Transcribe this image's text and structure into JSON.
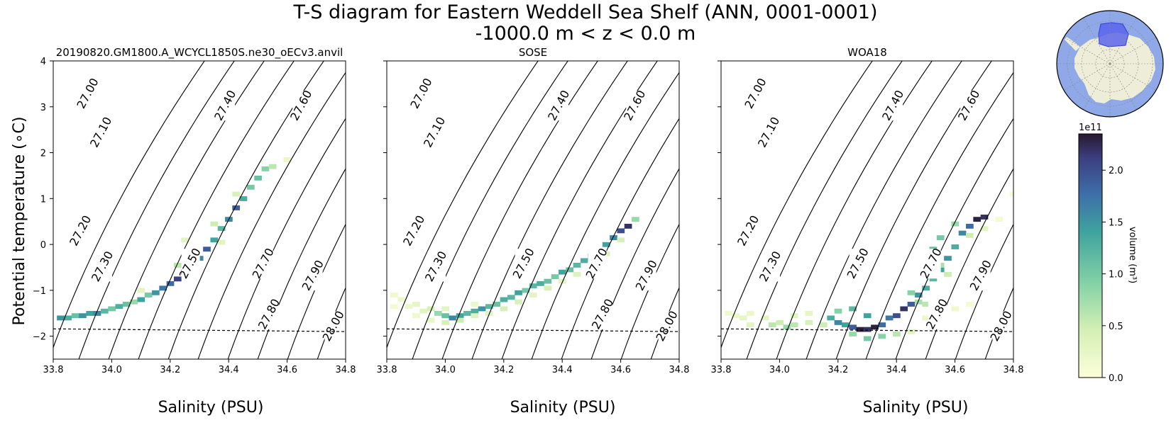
{
  "figure": {
    "title_line1": "T-S diagram for Eastern Weddell Sea Shelf (ANN, 0001-0001)",
    "title_line2": "-1000.0 m < z < 0.0 m",
    "ylabel": "Potential temperature (∘C)",
    "xlabel": "Salinity (PSU)"
  },
  "colorbar": {
    "label": "volume (m³)",
    "exponent": "1e11",
    "ticks": [
      0.0,
      0.5,
      1.0,
      1.5,
      2.0
    ],
    "tick_labels": [
      "0.0",
      "0.5",
      "1.0",
      "1.5",
      "2.0"
    ],
    "vmin": 0.0,
    "vmax": 2.35,
    "colormap": "deep"
  },
  "inset_map": {
    "ocean_color": "#8fa9e8",
    "land_color": "#eeedd8",
    "region_color": "#5a64ef"
  },
  "chart_data": [
    {
      "type": "heatmap",
      "title": "20190820.GM1800.A_WCYCL1850S.ne30_oECv3.anvil",
      "xlabel": "Salinity (PSU)",
      "ylabel": "Potential temperature (∘C)",
      "xlim": [
        33.8,
        34.8
      ],
      "ylim": [
        -2.5,
        4.0
      ],
      "x_ticks": [
        "33.8",
        "34.0",
        "34.2",
        "34.4",
        "34.6",
        "34.8"
      ],
      "y_ticks": [
        "−2",
        "−1",
        "0",
        "1",
        "2",
        "3",
        "4"
      ],
      "freezing_line": [
        [
          33.8,
          -1.84
        ],
        [
          34.8,
          -1.9
        ]
      ],
      "density_contours": [
        "27.00",
        "27.10",
        "27.20",
        "27.30",
        "27.40",
        "27.50",
        "27.60",
        "27.70",
        "27.80",
        "27.90",
        "28.00"
      ],
      "cells": [
        [
          33.825,
          -1.6,
          1.5
        ],
        [
          33.85,
          -1.6,
          1.3
        ],
        [
          33.875,
          -1.55,
          1.1
        ],
        [
          33.9,
          -1.55,
          1.5
        ],
        [
          33.925,
          -1.5,
          1.4
        ],
        [
          33.95,
          -1.5,
          1.6
        ],
        [
          33.975,
          -1.45,
          1.2
        ],
        [
          34.0,
          -1.4,
          1.0
        ],
        [
          34.025,
          -1.35,
          1.3
        ],
        [
          34.05,
          -1.3,
          1.1
        ],
        [
          34.075,
          -1.25,
          0.8
        ],
        [
          34.1,
          -1.2,
          1.4
        ],
        [
          34.125,
          -1.1,
          1.0
        ],
        [
          34.15,
          -1.05,
          1.5
        ],
        [
          34.175,
          -0.95,
          1.7
        ],
        [
          34.2,
          -0.85,
          1.8
        ],
        [
          34.225,
          -0.75,
          2.1
        ],
        [
          34.25,
          -0.6,
          2.3
        ],
        [
          34.275,
          -0.45,
          1.9
        ],
        [
          34.3,
          -0.3,
          1.6
        ],
        [
          34.325,
          -0.1,
          1.9
        ],
        [
          34.35,
          0.1,
          1.4
        ],
        [
          34.375,
          0.35,
          1.2
        ],
        [
          34.4,
          0.55,
          1.6
        ],
        [
          34.425,
          0.8,
          1.9
        ],
        [
          34.45,
          1.0,
          1.3
        ],
        [
          34.475,
          1.25,
          1.0
        ],
        [
          34.5,
          1.45,
          1.1
        ],
        [
          34.525,
          1.65,
          0.9
        ],
        [
          34.55,
          1.7,
          0.6
        ],
        [
          34.6,
          1.85,
          0.2
        ],
        [
          34.225,
          -0.45,
          0.6
        ],
        [
          34.275,
          -0.2,
          0.5
        ],
        [
          34.25,
          0.1,
          0.3
        ],
        [
          34.35,
          0.45,
          0.5
        ],
        [
          34.425,
          1.1,
          0.4
        ],
        [
          34.375,
          0.05,
          0.3
        ],
        [
          34.1,
          -1.0,
          0.3
        ]
      ]
    },
    {
      "type": "heatmap",
      "title": "SOSE",
      "xlabel": "Salinity (PSU)",
      "xlim": [
        33.8,
        34.8
      ],
      "ylim": [
        -2.5,
        4.0
      ],
      "x_ticks": [
        "33.8",
        "34.0",
        "34.2",
        "34.4",
        "34.6",
        "34.8"
      ],
      "freezing_line": [
        [
          33.8,
          -1.84
        ],
        [
          34.8,
          -1.9
        ]
      ],
      "density_contours": [
        "27.00",
        "27.10",
        "27.20",
        "27.30",
        "27.40",
        "27.50",
        "27.60",
        "27.70",
        "27.80",
        "27.90",
        "28.00"
      ],
      "cells": [
        [
          33.825,
          -1.1,
          0.15
        ],
        [
          33.85,
          -1.2,
          0.2
        ],
        [
          33.9,
          -1.3,
          0.25
        ],
        [
          33.95,
          -1.4,
          0.4
        ],
        [
          33.975,
          -1.5,
          0.8
        ],
        [
          34.0,
          -1.55,
          1.1
        ],
        [
          34.025,
          -1.6,
          1.6
        ],
        [
          34.05,
          -1.55,
          1.4
        ],
        [
          34.075,
          -1.5,
          1.2
        ],
        [
          34.1,
          -1.45,
          1.3
        ],
        [
          34.125,
          -1.4,
          1.5
        ],
        [
          34.15,
          -1.35,
          1.2
        ],
        [
          34.175,
          -1.3,
          1.1
        ],
        [
          34.2,
          -1.2,
          1.3
        ],
        [
          34.225,
          -1.15,
          1.2
        ],
        [
          34.25,
          -1.05,
          1.4
        ],
        [
          34.275,
          -1.0,
          1.0
        ],
        [
          34.3,
          -0.9,
          1.2
        ],
        [
          34.325,
          -0.85,
          1.3
        ],
        [
          34.35,
          -0.8,
          1.1
        ],
        [
          34.375,
          -0.7,
          1.0
        ],
        [
          34.4,
          -0.6,
          1.4
        ],
        [
          34.425,
          -0.55,
          1.1
        ],
        [
          34.45,
          -0.45,
          1.2
        ],
        [
          34.475,
          -0.35,
          1.3
        ],
        [
          34.5,
          -0.25,
          1.2
        ],
        [
          34.525,
          -0.15,
          1.5
        ],
        [
          34.55,
          0.0,
          1.4
        ],
        [
          34.575,
          0.15,
          1.6
        ],
        [
          34.6,
          0.3,
          2.0
        ],
        [
          34.625,
          0.4,
          2.2
        ],
        [
          34.65,
          0.55,
          0.8
        ],
        [
          33.875,
          -1.35,
          0.2
        ],
        [
          33.925,
          -1.45,
          0.3
        ],
        [
          33.95,
          -1.65,
          0.25
        ],
        [
          34.0,
          -1.7,
          0.4
        ],
        [
          34.05,
          -1.65,
          0.5
        ],
        [
          34.1,
          -1.55,
          0.35
        ],
        [
          34.15,
          -1.5,
          0.3
        ],
        [
          34.2,
          -1.4,
          0.4
        ],
        [
          34.25,
          -1.25,
          0.4
        ],
        [
          34.3,
          -1.1,
          0.3
        ],
        [
          34.35,
          -0.95,
          0.4
        ],
        [
          34.4,
          -0.8,
          0.3
        ],
        [
          34.45,
          -0.65,
          0.35
        ],
        [
          34.5,
          -0.4,
          0.3
        ],
        [
          34.55,
          -0.2,
          0.35
        ],
        [
          34.6,
          0.1,
          0.4
        ],
        [
          33.825,
          -1.35,
          0.1
        ],
        [
          33.9,
          -1.55,
          0.15
        ],
        [
          34.0,
          -1.4,
          0.3
        ],
        [
          34.1,
          -1.3,
          0.2
        ]
      ]
    },
    {
      "type": "heatmap",
      "title": "WOA18",
      "xlabel": "Salinity (PSU)",
      "xlim": [
        33.8,
        34.8
      ],
      "ylim": [
        -2.5,
        4.0
      ],
      "x_ticks": [
        "33.8",
        "34.0",
        "34.2",
        "34.4",
        "34.6",
        "34.8"
      ],
      "freezing_line": [
        [
          33.8,
          -1.84
        ],
        [
          34.8,
          -1.9
        ]
      ],
      "density_contours": [
        "27.00",
        "27.10",
        "27.20",
        "27.30",
        "27.40",
        "27.50",
        "27.60",
        "27.70",
        "27.80",
        "27.90",
        "28.00"
      ],
      "cells": [
        [
          33.825,
          -1.5,
          0.15
        ],
        [
          33.85,
          -1.55,
          0.2
        ],
        [
          33.875,
          -1.6,
          0.25
        ],
        [
          33.9,
          -1.5,
          0.2
        ],
        [
          33.95,
          -1.6,
          0.3
        ],
        [
          33.975,
          -1.75,
          0.6
        ],
        [
          34.0,
          -1.7,
          0.5
        ],
        [
          34.025,
          -1.8,
          0.8
        ],
        [
          34.05,
          -1.75,
          0.6
        ],
        [
          34.1,
          -1.7,
          0.4
        ],
        [
          34.15,
          -1.75,
          0.5
        ],
        [
          34.175,
          -1.6,
          1.3
        ],
        [
          34.2,
          -1.7,
          1.6
        ],
        [
          34.225,
          -1.75,
          1.4
        ],
        [
          34.25,
          -1.8,
          1.9
        ],
        [
          34.275,
          -1.85,
          2.3
        ],
        [
          34.3,
          -1.85,
          2.2
        ],
        [
          34.325,
          -1.8,
          2.3
        ],
        [
          34.35,
          -1.75,
          1.8
        ],
        [
          34.375,
          -1.6,
          1.7
        ],
        [
          34.4,
          -1.55,
          2.0
        ],
        [
          34.425,
          -1.4,
          2.2
        ],
        [
          34.45,
          -1.3,
          1.9
        ],
        [
          34.475,
          -1.1,
          1.5
        ],
        [
          34.5,
          -0.95,
          1.3
        ],
        [
          34.525,
          -0.75,
          1.2
        ],
        [
          34.55,
          -0.55,
          1.4
        ],
        [
          34.575,
          -0.3,
          1.5
        ],
        [
          34.6,
          -0.05,
          1.3
        ],
        [
          34.625,
          0.25,
          1.6
        ],
        [
          34.65,
          0.4,
          1.8
        ],
        [
          34.675,
          0.55,
          2.3
        ],
        [
          34.7,
          0.6,
          2.2
        ],
        [
          34.525,
          -0.1,
          1.1
        ],
        [
          34.55,
          0.15,
          1.0
        ],
        [
          34.6,
          0.45,
          0.8
        ],
        [
          34.3,
          -1.55,
          1.4
        ],
        [
          34.25,
          -1.4,
          1.2
        ],
        [
          34.2,
          -1.45,
          0.9
        ],
        [
          34.45,
          -1.05,
          0.9
        ],
        [
          34.475,
          -1.25,
          0.7
        ],
        [
          34.5,
          -1.3,
          0.6
        ],
        [
          34.55,
          -1.25,
          0.4
        ],
        [
          34.35,
          -2.0,
          0.9
        ],
        [
          34.3,
          -2.05,
          1.0
        ],
        [
          34.25,
          -1.95,
          0.8
        ],
        [
          34.4,
          -1.95,
          0.6
        ],
        [
          34.45,
          -1.9,
          0.3
        ],
        [
          33.9,
          -1.75,
          0.3
        ],
        [
          34.05,
          -1.55,
          0.3
        ],
        [
          34.1,
          -1.5,
          0.25
        ],
        [
          34.5,
          -1.6,
          0.2
        ],
        [
          34.6,
          -1.4,
          0.15
        ],
        [
          34.65,
          -1.3,
          0.1
        ],
        [
          34.55,
          -0.45,
          0.7
        ],
        [
          34.575,
          -0.65,
          0.5
        ],
        [
          34.65,
          0.2,
          0.5
        ],
        [
          34.7,
          0.35,
          0.3
        ],
        [
          34.75,
          0.55,
          0.1
        ],
        [
          34.8,
          1.1,
          0.05
        ]
      ]
    }
  ]
}
